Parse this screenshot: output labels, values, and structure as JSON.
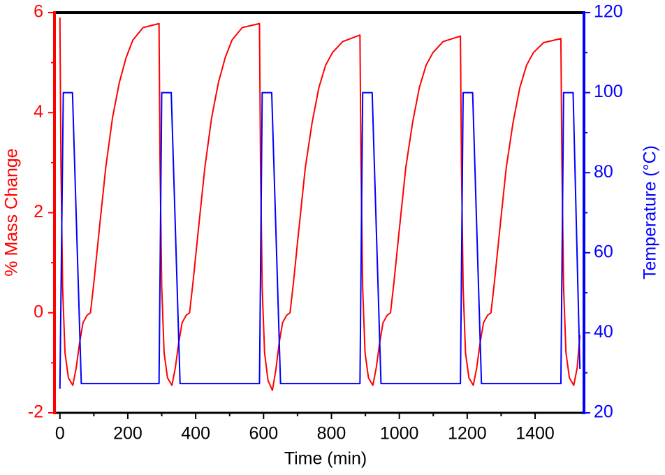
{
  "chart_data": {
    "type": "line",
    "xlabel": "Time (min)",
    "ylabel": "% Mass Change",
    "y2label": "Temperature (°C)",
    "xlim": [
      -16,
      1544
    ],
    "xticks": [
      0,
      200,
      400,
      600,
      800,
      1000,
      1200,
      1400
    ],
    "ylim": [
      -2,
      6
    ],
    "yticks": [
      -2,
      0,
      2,
      4,
      6
    ],
    "y2lim": [
      20,
      120
    ],
    "y2ticks": [
      20,
      40,
      60,
      80,
      100,
      120
    ],
    "ycolor": "#ff0000",
    "y2color": "#0000ff",
    "series": [
      {
        "name": "% Mass Change",
        "color": "#ff0000",
        "axis": "y",
        "x": [
          0,
          3,
          8,
          15,
          25,
          38,
          48,
          58,
          68,
          80,
          90,
          100,
          115,
          135,
          155,
          175,
          195,
          215,
          245,
          292,
          295,
          300,
          307,
          317,
          330,
          340,
          350,
          360,
          372,
          382,
          392,
          407,
          427,
          447,
          467,
          487,
          507,
          537,
          588,
          591,
          596,
          603,
          613,
          626,
          636,
          646,
          656,
          668,
          678,
          688,
          703,
          723,
          743,
          763,
          783,
          803,
          833,
          884,
          887,
          892,
          899,
          909,
          922,
          932,
          942,
          952,
          964,
          974,
          984,
          999,
          1019,
          1039,
          1059,
          1079,
          1099,
          1129,
          1180,
          1183,
          1188,
          1195,
          1205,
          1218,
          1228,
          1238,
          1248,
          1260,
          1270,
          1280,
          1295,
          1315,
          1335,
          1355,
          1375,
          1395,
          1425,
          1476,
          1479,
          1484,
          1491,
          1501,
          1514,
          1524,
          1532
        ],
        "values": [
          5.9,
          3.0,
          0.5,
          -0.8,
          -1.3,
          -1.45,
          -1.1,
          -0.6,
          -0.2,
          -0.05,
          0.0,
          0.6,
          1.6,
          2.9,
          3.9,
          4.6,
          5.1,
          5.45,
          5.7,
          5.78,
          3.0,
          0.5,
          -0.8,
          -1.3,
          -1.45,
          -1.1,
          -0.6,
          -0.2,
          -0.05,
          0.0,
          0.6,
          1.6,
          2.9,
          3.9,
          4.6,
          5.1,
          5.45,
          5.7,
          5.78,
          3.0,
          0.5,
          -0.8,
          -1.35,
          -1.55,
          -1.15,
          -0.6,
          -0.2,
          -0.05,
          0.0,
          0.6,
          1.6,
          2.9,
          3.8,
          4.5,
          4.95,
          5.2,
          5.42,
          5.55,
          3.0,
          0.5,
          -0.8,
          -1.3,
          -1.45,
          -1.1,
          -0.6,
          -0.2,
          -0.05,
          0.0,
          0.6,
          1.6,
          2.9,
          3.8,
          4.5,
          4.95,
          5.2,
          5.42,
          5.53,
          3.0,
          0.5,
          -0.8,
          -1.3,
          -1.45,
          -1.1,
          -0.6,
          -0.2,
          -0.05,
          0.0,
          0.6,
          1.6,
          2.9,
          3.8,
          4.5,
          4.95,
          5.2,
          5.4,
          5.48,
          3.0,
          0.5,
          -0.8,
          -1.3,
          -1.45,
          -1.1,
          -0.45
        ]
      },
      {
        "name": "Temperature (°C)",
        "color": "#0000ff",
        "axis": "y2",
        "x": [
          0,
          10,
          37,
          63,
          292,
          300,
          328,
          354,
          588,
          596,
          624,
          650,
          884,
          892,
          920,
          946,
          1180,
          1188,
          1216,
          1242,
          1476,
          1484,
          1512,
          1532
        ],
        "values": [
          26,
          100,
          100,
          27.3,
          27.3,
          100,
          100,
          27.3,
          27.3,
          100,
          100,
          27.3,
          27.3,
          100,
          100,
          27.3,
          27.3,
          100,
          100,
          27.3,
          27.3,
          100,
          100,
          31
        ]
      }
    ]
  }
}
